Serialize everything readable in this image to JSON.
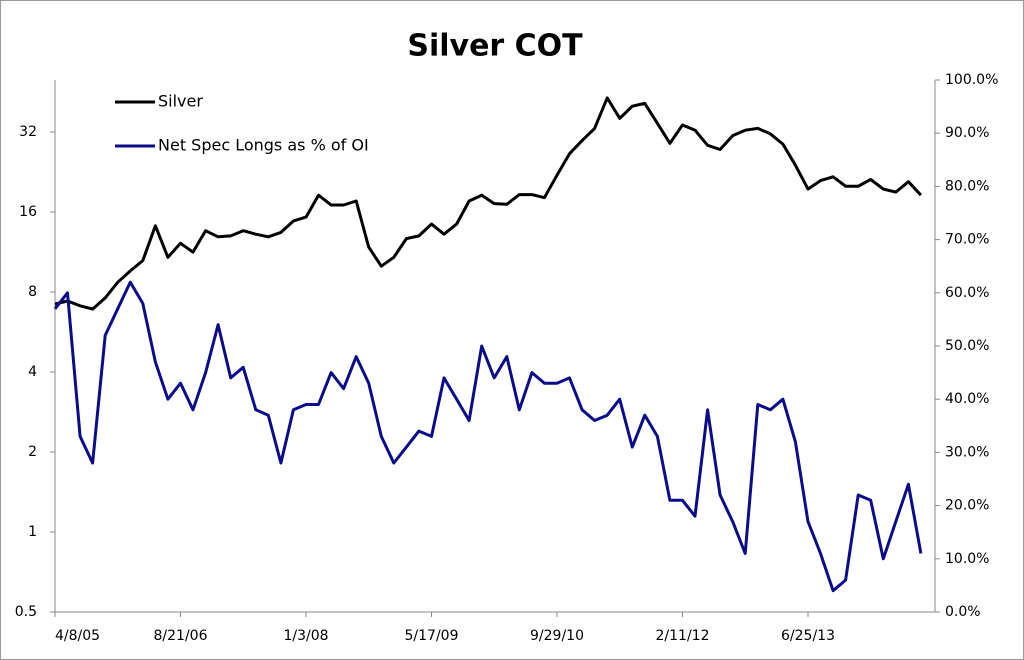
{
  "chart_data": {
    "type": "line",
    "title": "Silver COT",
    "x": [
      "4/8/05",
      "5/28/05",
      "7/17/05",
      "9/5/05",
      "10/25/05",
      "12/14/05",
      "2/2/06",
      "3/24/06",
      "5/13/06",
      "7/2/06",
      "8/21/06",
      "10/10/06",
      "11/29/06",
      "1/18/07",
      "3/9/07",
      "4/28/07",
      "6/17/07",
      "8/6/07",
      "9/25/07",
      "11/14/07",
      "1/3/08",
      "2/22/08",
      "4/12/08",
      "6/1/08",
      "7/21/08",
      "9/9/08",
      "10/29/08",
      "12/18/08",
      "2/6/09",
      "3/28/09",
      "5/17/09",
      "7/6/09",
      "8/25/09",
      "10/14/09",
      "12/3/09",
      "1/22/10",
      "3/13/10",
      "5/2/10",
      "6/21/10",
      "8/10/10",
      "9/29/10",
      "11/18/10",
      "1/7/11",
      "2/26/11",
      "4/17/11",
      "6/6/11",
      "7/26/11",
      "9/14/11",
      "11/3/11",
      "12/23/11",
      "2/11/12",
      "4/1/12",
      "5/21/12",
      "7/10/12",
      "8/29/12",
      "10/18/12",
      "12/7/12",
      "1/26/13",
      "3/17/13",
      "5/6/13",
      "6/25/13",
      "8/14/13",
      "10/3/13",
      "11/22/13",
      "1/11/14",
      "3/2/14",
      "4/21/14",
      "6/10/14",
      "7/30/14",
      "9/18/14"
    ],
    "series": [
      {
        "name": "Silver",
        "color": "#000000",
        "axis": "y",
        "values": [
          7.2,
          7.4,
          7.1,
          6.9,
          7.6,
          8.7,
          9.6,
          10.5,
          14.2,
          10.8,
          12.2,
          11.3,
          13.6,
          12.9,
          13.0,
          13.6,
          13.2,
          12.9,
          13.4,
          14.8,
          15.3,
          18.5,
          17.0,
          17.0,
          17.6,
          11.8,
          10.0,
          10.8,
          12.7,
          13.0,
          14.4,
          13.2,
          14.4,
          17.6,
          18.5,
          17.2,
          17.1,
          18.6,
          18.6,
          18.1,
          22.0,
          26.5,
          29.7,
          33.0,
          43.0,
          36.0,
          40.0,
          41.0,
          34.5,
          29.0,
          34.0,
          32.5,
          28.5,
          27.5,
          31.0,
          32.5,
          33.0,
          31.5,
          28.8,
          24.0,
          19.5,
          21.0,
          21.7,
          20.0,
          20.0,
          21.2,
          19.5,
          19.0,
          20.8,
          18.5
        ]
      },
      {
        "name": "Net Spec Longs as % of OI",
        "color": "#0c0c8a",
        "axis": "y2",
        "values": [
          57,
          60,
          33,
          28,
          52,
          57,
          62,
          58,
          47,
          40,
          43,
          38,
          45,
          54,
          44,
          46,
          38,
          37,
          28,
          38,
          39,
          39,
          45,
          42,
          48,
          43,
          33,
          28,
          31,
          34,
          33,
          44,
          40,
          36,
          50,
          44,
          48,
          38,
          45,
          43,
          43,
          44,
          38,
          36,
          37,
          40,
          31,
          37,
          33,
          21,
          21,
          18,
          38,
          22,
          17,
          11,
          39,
          38,
          40,
          32,
          17,
          11,
          4,
          6,
          22,
          21,
          10,
          17,
          24,
          11
        ]
      }
    ],
    "xlim": [
      "4/8/05",
      "11/13/14"
    ],
    "xticks": [
      "4/8/05",
      "8/21/06",
      "1/3/08",
      "5/17/09",
      "9/29/10",
      "2/11/12",
      "6/25/13"
    ],
    "y_scale": "log",
    "ylim": [
      0.5,
      50.2
    ],
    "yticks": [
      0.5,
      1,
      2,
      4,
      8,
      16,
      32
    ],
    "y2lim": [
      0,
      100
    ],
    "y2ticks": [
      {
        "value": 0,
        "label": "0.0%"
      },
      {
        "value": 10,
        "label": "10.0%"
      },
      {
        "value": 20,
        "label": "20.0%"
      },
      {
        "value": 30,
        "label": "30.0%"
      },
      {
        "value": 40,
        "label": "40.0%"
      },
      {
        "value": 50,
        "label": "50.0%"
      },
      {
        "value": 60,
        "label": "60.0%"
      },
      {
        "value": 70,
        "label": "70.0%"
      },
      {
        "value": 80,
        "label": "80.0%"
      },
      {
        "value": 90,
        "label": "90.0%"
      },
      {
        "value": 100,
        "label": "100.0%"
      }
    ],
    "legend": "upper left"
  }
}
